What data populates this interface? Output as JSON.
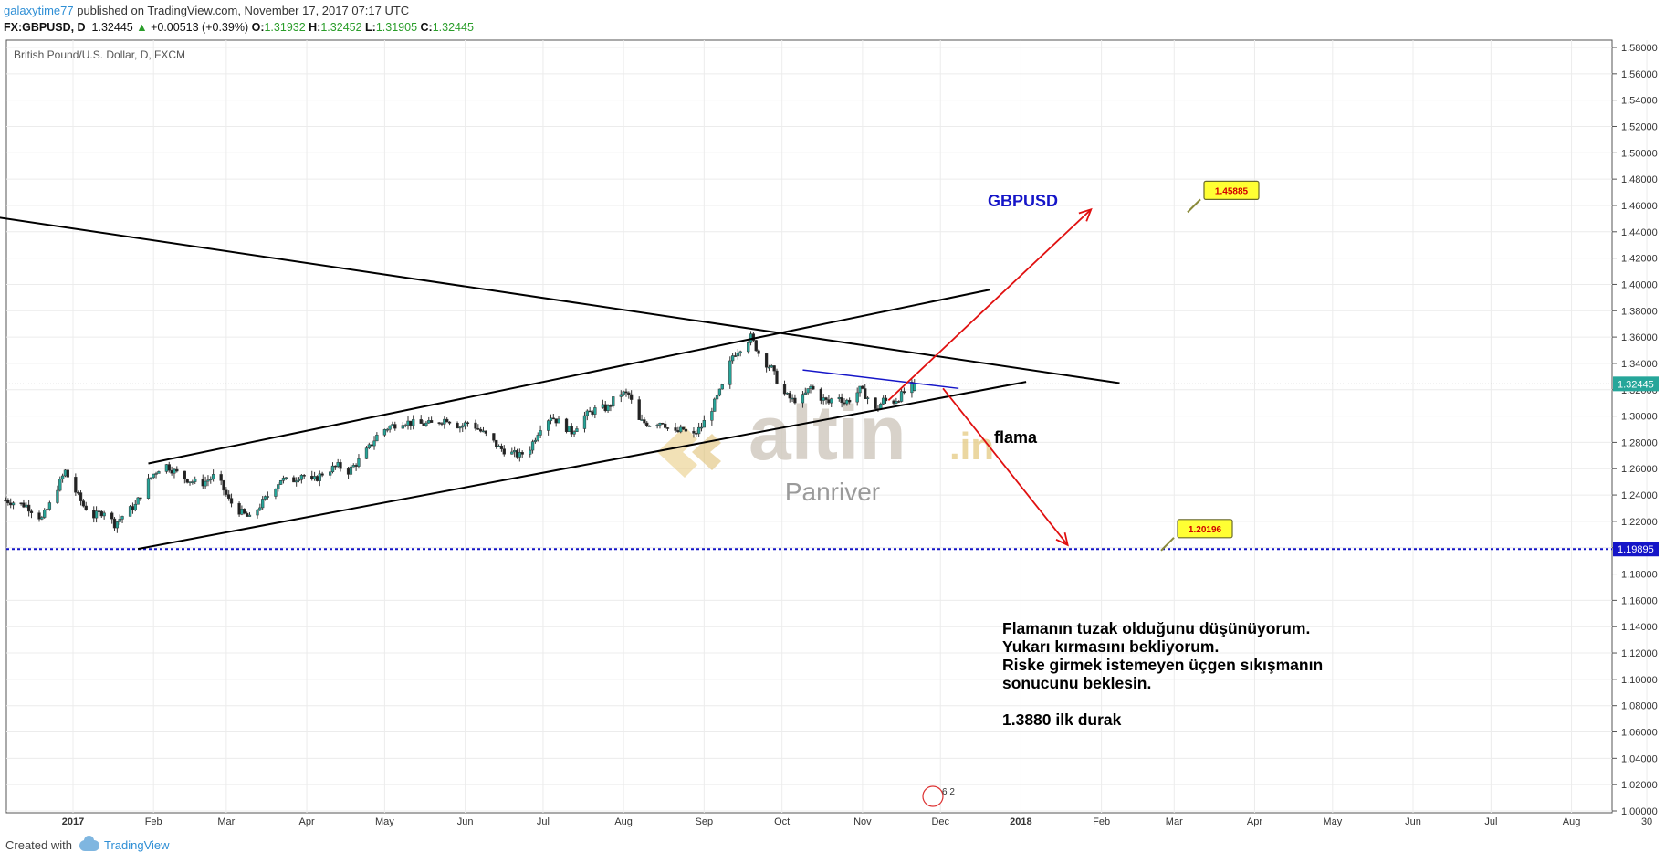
{
  "header": {
    "user": "galaxytime77",
    "published": " published on TradingView.com, November 17, 2017 07:17 UTC",
    "symbol": "FX:GBPUSD, D",
    "price": "1.32445",
    "change": "+0.00513 (+0.39%)",
    "o_label": "O:",
    "o": "1.31932",
    "h_label": "H:",
    "h": "1.32452",
    "l_label": "L:",
    "l": "1.31905",
    "c_label": "C:",
    "c": "1.32445"
  },
  "footer": {
    "created": "Created with",
    "brand": "TradingView"
  },
  "chart_data": {
    "type": "candlestick",
    "title": "British Pound/U.S. Dollar, D, FXCM",
    "ylim": [
      0.985,
      1.585
    ],
    "y_ticks": [
      "1.58000",
      "1.56000",
      "1.54000",
      "1.52000",
      "1.50000",
      "1.48000",
      "1.46000",
      "1.44000",
      "1.42000",
      "1.40000",
      "1.38000",
      "1.36000",
      "1.34000",
      "1.32000",
      "1.30000",
      "1.28000",
      "1.26000",
      "1.24000",
      "1.22000",
      "1.20000",
      "1.18000",
      "1.16000",
      "1.14000",
      "1.12000",
      "1.10000",
      "1.08000",
      "1.06000",
      "1.04000",
      "1.02000",
      "1.00000"
    ],
    "x_ticks": [
      {
        "label": "2017",
        "day": 6
      },
      {
        "label": "Feb",
        "day": 37
      },
      {
        "label": "Mar",
        "day": 65
      },
      {
        "label": "Apr",
        "day": 96
      },
      {
        "label": "May",
        "day": 126
      },
      {
        "label": "Jun",
        "day": 157
      },
      {
        "label": "Jul",
        "day": 187
      },
      {
        "label": "Aug",
        "day": 218
      },
      {
        "label": "Sep",
        "day": 249
      },
      {
        "label": "Oct",
        "day": 279
      },
      {
        "label": "Nov",
        "day": 310
      },
      {
        "label": "Dec",
        "day": 340
      },
      {
        "label": "2018",
        "day": 371
      },
      {
        "label": "Feb",
        "day": 402
      },
      {
        "label": "Mar",
        "day": 430
      },
      {
        "label": "Apr",
        "day": 461
      },
      {
        "label": "May",
        "day": 491
      },
      {
        "label": "Jun",
        "day": 522
      },
      {
        "label": "Jul",
        "day": 552
      },
      {
        "label": "Aug",
        "day": 583
      },
      {
        "label": "30",
        "day": 612
      }
    ],
    "close_path": [
      [
        -20,
        1.236
      ],
      [
        -12,
        1.232
      ],
      [
        -6,
        1.222
      ],
      [
        -2,
        1.236
      ],
      [
        0,
        1.246
      ],
      [
        3,
        1.258
      ],
      [
        6,
        1.246
      ],
      [
        10,
        1.232
      ],
      [
        14,
        1.224
      ],
      [
        18,
        1.228
      ],
      [
        22,
        1.218
      ],
      [
        26,
        1.226
      ],
      [
        30,
        1.232
      ],
      [
        34,
        1.248
      ],
      [
        37,
        1.256
      ],
      [
        41,
        1.264
      ],
      [
        45,
        1.258
      ],
      [
        50,
        1.252
      ],
      [
        55,
        1.248
      ],
      [
        60,
        1.254
      ],
      [
        63,
        1.248
      ],
      [
        66,
        1.236
      ],
      [
        70,
        1.228
      ],
      [
        74,
        1.222
      ],
      [
        78,
        1.232
      ],
      [
        82,
        1.242
      ],
      [
        86,
        1.252
      ],
      [
        90,
        1.25
      ],
      [
        94,
        1.256
      ],
      [
        98,
        1.25
      ],
      [
        103,
        1.258
      ],
      [
        108,
        1.262
      ],
      [
        112,
        1.258
      ],
      [
        116,
        1.266
      ],
      [
        120,
        1.276
      ],
      [
        124,
        1.288
      ],
      [
        128,
        1.292
      ],
      [
        133,
        1.296
      ],
      [
        138,
        1.294
      ],
      [
        144,
        1.294
      ],
      [
        150,
        1.298
      ],
      [
        155,
        1.292
      ],
      [
        159,
        1.296
      ],
      [
        162,
        1.29
      ],
      [
        166,
        1.284
      ],
      [
        170,
        1.276
      ],
      [
        174,
        1.272
      ],
      [
        178,
        1.27
      ],
      [
        182,
        1.276
      ],
      [
        186,
        1.292
      ],
      [
        190,
        1.3
      ],
      [
        194,
        1.294
      ],
      [
        198,
        1.288
      ],
      [
        203,
        1.3
      ],
      [
        208,
        1.306
      ],
      [
        212,
        1.306
      ],
      [
        216,
        1.318
      ],
      [
        220,
        1.316
      ],
      [
        224,
        1.296
      ],
      [
        228,
        1.294
      ],
      [
        233,
        1.296
      ],
      [
        237,
        1.286
      ],
      [
        241,
        1.29
      ],
      [
        244,
        1.283
      ],
      [
        248,
        1.292
      ],
      [
        252,
        1.306
      ],
      [
        256,
        1.322
      ],
      [
        260,
        1.346
      ],
      [
        264,
        1.354
      ],
      [
        267,
        1.36
      ],
      [
        271,
        1.344
      ],
      [
        275,
        1.336
      ],
      [
        279,
        1.318
      ],
      [
        283,
        1.312
      ],
      [
        287,
        1.314
      ],
      [
        290,
        1.322
      ],
      [
        294,
        1.314
      ],
      [
        297,
        1.31
      ],
      [
        300,
        1.318
      ],
      [
        303,
        1.31
      ],
      [
        306,
        1.314
      ],
      [
        309,
        1.32
      ],
      [
        312,
        1.314
      ],
      [
        315,
        1.304
      ],
      [
        318,
        1.312
      ],
      [
        321,
        1.31
      ],
      [
        324,
        1.314
      ],
      [
        327,
        1.32
      ],
      [
        330,
        1.3245
      ]
    ],
    "last_price": "1.32445",
    "support_level": "1.19895",
    "annotations": {
      "symbol_label": "GBPUSD",
      "flag_label": "flama",
      "target_up": "1.45885",
      "target_down": "1.20196",
      "note_lines": [
        "Flamanın tuzak olduğunu düşünüyorum.",
        "Yukarı kırmasını bekliyorum.",
        "Riske girmek istemeyen üçgen sıkışmanın",
        "sonucunu beklesin."
      ],
      "note_stop": "1.3880 ilk durak"
    },
    "trend_lines": [
      {
        "name": "downtrend-resistance",
        "p1": [
          -30,
          1.453
        ],
        "p2": [
          409,
          1.325
        ]
      },
      {
        "name": "channel-upper",
        "p1": [
          35,
          1.264
        ],
        "p2": [
          359,
          1.396
        ]
      },
      {
        "name": "channel-lower",
        "p1": [
          31,
          1.199
        ],
        "p2": [
          373,
          1.326
        ]
      },
      {
        "name": "pennant-upper",
        "p1": [
          287,
          1.335
        ],
        "p2": [
          347,
          1.321
        ]
      }
    ],
    "arrows": [
      {
        "name": "up-arrow",
        "from": [
          320,
          1.312
        ],
        "to": [
          398,
          1.457
        ]
      },
      {
        "name": "down-arrow",
        "from": [
          341,
          1.321
        ],
        "to": [
          389,
          1.202
        ]
      }
    ],
    "watermark": {
      "brand": "altin",
      "suffix": ".in",
      "sub": "Panriver",
      "badge": "6 2"
    },
    "colors": {
      "up": "#26a69a",
      "down": "#222222",
      "trend": "#000000",
      "arrow": "#e01010",
      "blue": "#1515c8",
      "callout": "#ffff33"
    }
  }
}
